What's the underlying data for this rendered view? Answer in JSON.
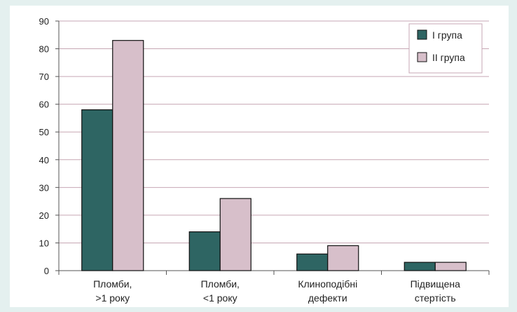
{
  "chart_data": {
    "type": "bar",
    "categories": [
      [
        "Пломби,",
        ">1 року"
      ],
      [
        "Пломби,",
        "<1 року"
      ],
      [
        "Клиноподібні",
        "дефекти"
      ],
      [
        "Підвищена",
        "стертість"
      ]
    ],
    "series": [
      {
        "name": "I група",
        "values": [
          58,
          14,
          6,
          3
        ],
        "color": "#2e6563"
      },
      {
        "name": "II група",
        "values": [
          83,
          26,
          9,
          3
        ],
        "color": "#d7bfca"
      }
    ],
    "ylim": [
      0,
      90
    ],
    "yticks": [
      0,
      10,
      20,
      30,
      40,
      50,
      60,
      70,
      80,
      90
    ],
    "grid": true,
    "gridColor": "#c7a7b4",
    "legendPosition": "top-right",
    "title": "",
    "xlabel": "",
    "ylabel": ""
  }
}
